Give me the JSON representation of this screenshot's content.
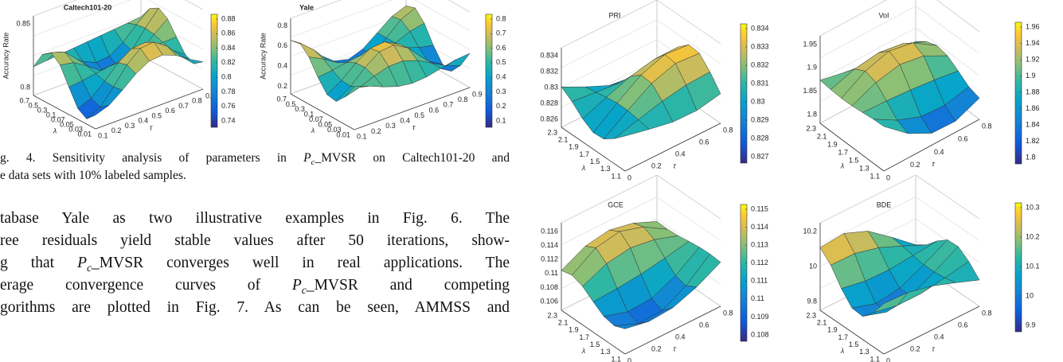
{
  "figures": [
    {
      "title": "Caltech101-20",
      "z_label": "Accuracy Rate",
      "z_ticks": [
        "0.85",
        "0.8"
      ],
      "lambda_ticks": [
        "0.7",
        "0.5",
        "0.3",
        "0.1",
        "0.07",
        "0.05",
        "0.03",
        "0.01"
      ],
      "lambda_label": "λ",
      "tau_ticks": [
        "0.1",
        "0.2",
        "0.3",
        "0.4",
        "0.5",
        "0.6",
        "0.7",
        "0.8",
        "0.9"
      ],
      "tau_label": "τ",
      "colorbar_ticks": [
        "0.88",
        "0.86",
        "0.84",
        "0.82",
        "0.8",
        "0.78",
        "0.76",
        "0.74"
      ]
    },
    {
      "title": "Yale",
      "z_label": "Accuracy Rate",
      "z_ticks": [
        "0.8",
        "0.6",
        "0.4",
        "0.2"
      ],
      "lambda_ticks": [
        "0.7",
        "0.5",
        "0.3",
        "0.1",
        "0.07",
        "0.05",
        "0.03",
        "0.01"
      ],
      "lambda_label": "λ",
      "tau_ticks": [
        "0.1",
        "0.2",
        "0.3",
        "0.4",
        "0.5",
        "0.6",
        "0.7",
        "0.8",
        "0.9"
      ],
      "tau_label": "τ",
      "colorbar_ticks": [
        "0.8",
        "0.7",
        "0.6",
        "0.5",
        "0.4",
        "0.3",
        "0.2",
        "0.1"
      ]
    },
    {
      "title": "PRI",
      "z_ticks": [
        "0.834",
        "0.832",
        "0.83",
        "0.828",
        "0.826"
      ],
      "lambda_ticks": [
        "2.3",
        "2.1",
        "1.9",
        "1.7",
        "1.5",
        "1.3",
        "1.1"
      ],
      "lambda_label": "λ",
      "tau_ticks": [
        "0",
        "0.2",
        "0.4",
        "0.6",
        "0.8"
      ],
      "tau_label": "τ",
      "colorbar_ticks": [
        "0.834",
        "0.833",
        "0.832",
        "0.831",
        "0.83",
        "0.829",
        "0.828",
        "0.827"
      ]
    },
    {
      "title": "VoI",
      "z_ticks": [
        "1.95",
        "1.9",
        "1.85",
        "1.8"
      ],
      "lambda_ticks": [
        "2.3",
        "2.1",
        "1.9",
        "1.7",
        "1.5",
        "1.3",
        "1.1"
      ],
      "lambda_label": "λ",
      "tau_ticks": [
        "0",
        "0.2",
        "0.4",
        "0.6",
        "0.8"
      ],
      "tau_label": "τ",
      "colorbar_ticks": [
        "1.96",
        "1.94",
        "1.92",
        "1.9",
        "1.88",
        "1.86",
        "1.84",
        "1.82",
        "1.8"
      ]
    },
    {
      "title": "GCE",
      "z_ticks": [
        "0.116",
        "0.114",
        "0.112",
        "0.11",
        "0.108",
        "0.106"
      ],
      "lambda_ticks": [
        "2.3",
        "2.1",
        "1.9",
        "1.7",
        "1.5",
        "1.3",
        "1.1"
      ],
      "lambda_label": "λ",
      "tau_ticks": [
        "0",
        "0.2",
        "0.4",
        "0.6",
        "0.8"
      ],
      "tau_label": "τ",
      "colorbar_ticks": [
        "0.115",
        "0.114",
        "0.113",
        "0.112",
        "0.111",
        "0.11",
        "0.109",
        "0.108"
      ]
    },
    {
      "title": "BDE",
      "z_ticks": [
        "10.2",
        "10",
        "9.8"
      ],
      "lambda_ticks": [
        "2.3",
        "2.1",
        "1.9",
        "1.7",
        "1.5",
        "1.3",
        "1.1"
      ],
      "lambda_label": "λ",
      "tau_ticks": [
        "0",
        "0.2",
        "0.4",
        "0.6",
        "0.8"
      ],
      "tau_label": "τ",
      "colorbar_ticks": [
        "10.3",
        "10.2",
        "10.1",
        "10",
        "9.9"
      ]
    }
  ],
  "caption": [
    [
      "g. 4.  Sensitivity analysis of parameters in ",
      "P",
      "c",
      "_MVSR on Caltech101-20 and"
    ],
    [
      "e data sets with 10% labeled samples."
    ]
  ],
  "paragraph": [
    [
      "tabase Yale as two illustrative examples in Fig. 6. The"
    ],
    [
      "ree residuals yield stable values after 50 iterations, show-"
    ],
    [
      "g that ",
      "P",
      "c",
      "_MVSR converges well in real applications. The"
    ],
    [
      "erage convergence curves of ",
      "P",
      "c",
      "_MVSR and competing"
    ],
    [
      "gorithms are plotted in Fig. 7. As can be seen, AMMSS and"
    ]
  ]
}
